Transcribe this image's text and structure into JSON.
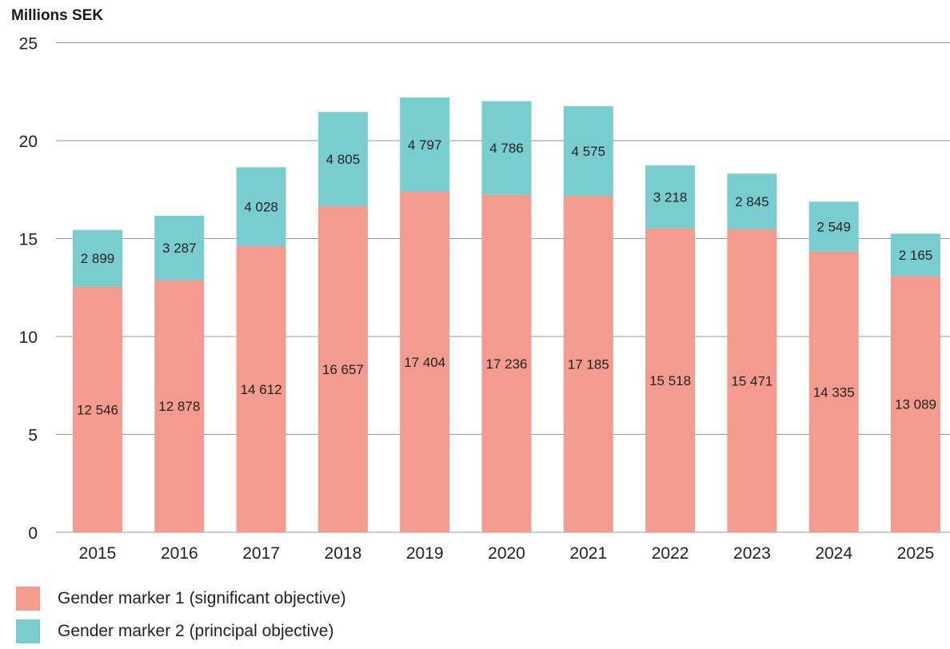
{
  "chart_data": {
    "type": "bar",
    "stacked": true,
    "ylabel": "Millions SEK",
    "ylim": [
      0,
      25
    ],
    "yticks": [
      0,
      5,
      10,
      15,
      20,
      25
    ],
    "grid": true,
    "legend_position": "bottom-left",
    "categories": [
      "2015",
      "2016",
      "2017",
      "2018",
      "2019",
      "2020",
      "2021",
      "2022",
      "2023",
      "2024",
      "2025"
    ],
    "series": [
      {
        "name": "Gender marker 1 (significant objective)",
        "color": "#f29b8e",
        "values": [
          12.546,
          12.878,
          14.612,
          16.657,
          17.404,
          17.236,
          17.185,
          15.518,
          15.471,
          14.335,
          13.089
        ],
        "labels": [
          "12 546",
          "12 878",
          "14 612",
          "16 657",
          "17 404",
          "17 236",
          "17 185",
          "15 518",
          "15 471",
          "14 335",
          "13 089"
        ]
      },
      {
        "name": "Gender marker 2 (principal objective)",
        "color": "#7acdcf",
        "values": [
          2.899,
          3.287,
          4.028,
          4.805,
          4.797,
          4.786,
          4.575,
          3.218,
          2.845,
          2.549,
          2.165
        ],
        "labels": [
          "2 899",
          "3 287",
          "4 028",
          "4 805",
          "4 797",
          "4 786",
          "4 575",
          "3 218",
          "2 845",
          "2 549",
          "2 165"
        ]
      }
    ]
  }
}
